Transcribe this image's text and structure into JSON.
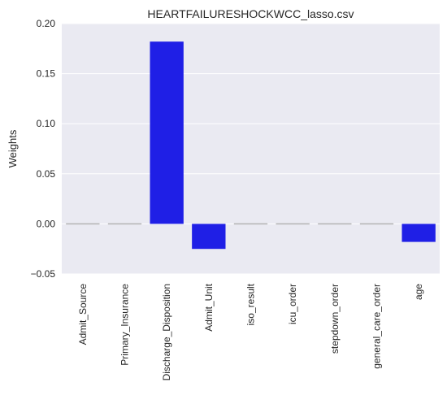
{
  "chart_data": {
    "type": "bar",
    "title": "HEARTFAILURESHOCKWCC_lasso.csv",
    "xlabel": "",
    "ylabel": "Weights",
    "categories": [
      "Admit_Source",
      "Primary_Insurance",
      "Discharge_Disposition",
      "Admit_Unit",
      "iso_result",
      "icu_order",
      "stepdown_order",
      "general_care_order",
      "age"
    ],
    "values": [
      0.0,
      0.0,
      0.182,
      -0.025,
      0.0,
      0.0,
      0.0,
      0.0,
      -0.018
    ],
    "ylim": [
      -0.05,
      0.2
    ],
    "yticks": [
      "−0.05",
      "0.00",
      "0.05",
      "0.10",
      "0.15",
      "0.20"
    ],
    "ytick_values": [
      -0.05,
      0.0,
      0.05,
      0.1,
      0.15,
      0.2
    ],
    "grid": true,
    "colors": {
      "bar": "#1f1fe6",
      "zero_bar": "#b3b3b3",
      "background": "#eaeaf2",
      "grid": "#ffffff"
    }
  }
}
